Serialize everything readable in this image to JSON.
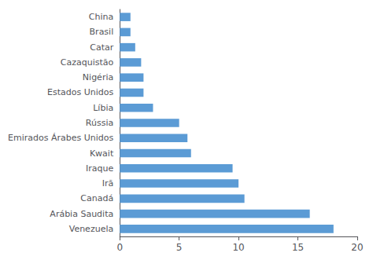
{
  "chart_data": {
    "type": "bar",
    "orientation": "horizontal",
    "categories": [
      "Venezuela",
      "Arábia Saudita",
      "Canadá",
      "Irã",
      "Iraque",
      "Kwait",
      "Emirados Árabes Unidos",
      "Rússia",
      "Líbia",
      "Estados Unidos",
      "Nigéria",
      "Cazaquistão",
      "Catar",
      "Brasil",
      "China"
    ],
    "values": [
      18.0,
      16.0,
      10.5,
      10.0,
      9.5,
      6.0,
      5.7,
      5.0,
      2.8,
      2.0,
      2.0,
      1.8,
      1.3,
      0.9,
      0.9
    ],
    "color": "#5b9bd5",
    "xlim": [
      0,
      20
    ],
    "xticks": [
      0,
      5,
      10,
      15,
      20
    ],
    "grid": false
  }
}
